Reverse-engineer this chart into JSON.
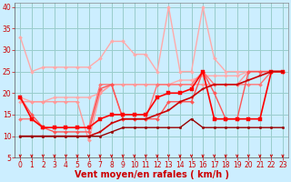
{
  "title": "",
  "xlabel": "Vent moyen/en rafales ( km/h )",
  "bg_color": "#cceeff",
  "grid_color": "#99cccc",
  "xlim": [
    -0.5,
    23.5
  ],
  "ylim": [
    5,
    41
  ],
  "yticks": [
    5,
    10,
    15,
    20,
    25,
    30,
    35,
    40
  ],
  "xticks": [
    0,
    1,
    2,
    3,
    4,
    5,
    6,
    7,
    8,
    9,
    10,
    11,
    12,
    13,
    14,
    15,
    16,
    17,
    18,
    19,
    20,
    21,
    22,
    23
  ],
  "lines": [
    {
      "x": [
        0,
        1,
        2,
        3,
        4,
        5,
        6,
        7,
        8,
        9,
        10,
        11,
        12,
        13,
        14,
        15,
        16,
        17,
        18,
        19,
        20,
        21,
        22,
        23
      ],
      "y": [
        33,
        25,
        26,
        26,
        26,
        26,
        26,
        28,
        32,
        32,
        29,
        29,
        25,
        40,
        25,
        25,
        40,
        28,
        25,
        25,
        25,
        25,
        25,
        25
      ],
      "color": "#ffaaaa",
      "lw": 1.0,
      "marker": "D",
      "ms": 2.0
    },
    {
      "x": [
        0,
        1,
        2,
        3,
        4,
        5,
        6,
        7,
        8,
        9,
        10,
        11,
        12,
        13,
        14,
        15,
        16,
        17,
        18,
        19,
        20,
        21,
        22,
        23
      ],
      "y": [
        19,
        18,
        18,
        19,
        19,
        19,
        19,
        20,
        22,
        22,
        22,
        22,
        22,
        22,
        23,
        23,
        24,
        24,
        24,
        24,
        25,
        25,
        25,
        25
      ],
      "color": "#ffaaaa",
      "lw": 1.0,
      "marker": "D",
      "ms": 2.0
    },
    {
      "x": [
        0,
        1,
        2,
        3,
        4,
        5,
        6,
        7,
        8,
        9,
        10,
        11,
        12,
        13,
        14,
        15,
        16,
        17,
        18,
        19,
        20,
        21,
        22,
        23
      ],
      "y": [
        18,
        18,
        18,
        18,
        18,
        18,
        9,
        20,
        22,
        22,
        22,
        22,
        22,
        22,
        22,
        22,
        22,
        22,
        22,
        22,
        25,
        25,
        25,
        25
      ],
      "color": "#ff9999",
      "lw": 1.0,
      "marker": "D",
      "ms": 2.0
    },
    {
      "x": [
        0,
        1,
        2,
        3,
        4,
        5,
        6,
        7,
        8,
        9,
        10,
        11,
        12,
        13,
        14,
        15,
        16,
        17,
        18,
        19,
        20,
        21,
        22,
        23
      ],
      "y": [
        14,
        14,
        12,
        12,
        12,
        12,
        12,
        22,
        22,
        14,
        14,
        14,
        22,
        22,
        22,
        22,
        25,
        22,
        22,
        22,
        22,
        22,
        25,
        25
      ],
      "color": "#ff7777",
      "lw": 1.0,
      "marker": "D",
      "ms": 2.0
    },
    {
      "x": [
        0,
        1,
        2,
        3,
        4,
        5,
        6,
        7,
        8,
        9,
        10,
        11,
        12,
        13,
        14,
        15,
        16,
        17,
        18,
        19,
        20,
        21,
        22,
        23
      ],
      "y": [
        19,
        15,
        12,
        11,
        11,
        11,
        11,
        21,
        22,
        14,
        14,
        14,
        14,
        18,
        18,
        18,
        25,
        20,
        14,
        14,
        25,
        25,
        25,
        25
      ],
      "color": "#ff5555",
      "lw": 1.0,
      "marker": "D",
      "ms": 2.0
    },
    {
      "x": [
        0,
        1,
        2,
        3,
        4,
        5,
        6,
        7,
        8,
        9,
        10,
        11,
        12,
        13,
        14,
        15,
        16,
        17,
        18,
        19,
        20,
        21,
        22,
        23
      ],
      "y": [
        19,
        14,
        12,
        12,
        12,
        12,
        12,
        14,
        15,
        15,
        15,
        15,
        19,
        20,
        20,
        21,
        25,
        14,
        14,
        14,
        14,
        14,
        25,
        25
      ],
      "color": "#ff0000",
      "lw": 1.2,
      "marker": "s",
      "ms": 2.5
    },
    {
      "x": [
        0,
        1,
        2,
        3,
        4,
        5,
        6,
        7,
        8,
        9,
        10,
        11,
        12,
        13,
        14,
        15,
        16,
        17,
        18,
        19,
        20,
        21,
        22,
        23
      ],
      "y": [
        10,
        10,
        10,
        10,
        10,
        10,
        10,
        11,
        13,
        14,
        14,
        14,
        15,
        16,
        18,
        19,
        21,
        22,
        22,
        22,
        23,
        24,
        25,
        25
      ],
      "color": "#cc0000",
      "lw": 1.2,
      "marker": "s",
      "ms": 2.0
    },
    {
      "x": [
        0,
        1,
        2,
        3,
        4,
        5,
        6,
        7,
        8,
        9,
        10,
        11,
        12,
        13,
        14,
        15,
        16,
        17,
        18,
        19,
        20,
        21,
        22,
        23
      ],
      "y": [
        10,
        10,
        10,
        10,
        10,
        10,
        10,
        10,
        11,
        12,
        12,
        12,
        12,
        12,
        12,
        14,
        12,
        12,
        12,
        12,
        12,
        12,
        12,
        12
      ],
      "color": "#990000",
      "lw": 1.0,
      "marker": "o",
      "ms": 1.8
    }
  ],
  "arrow_color": "#cc0000",
  "xlabel_color": "#cc0000",
  "xlabel_fontsize": 7,
  "tick_fontsize": 5.5,
  "tick_color": "#cc0000",
  "spine_color": "#888888"
}
